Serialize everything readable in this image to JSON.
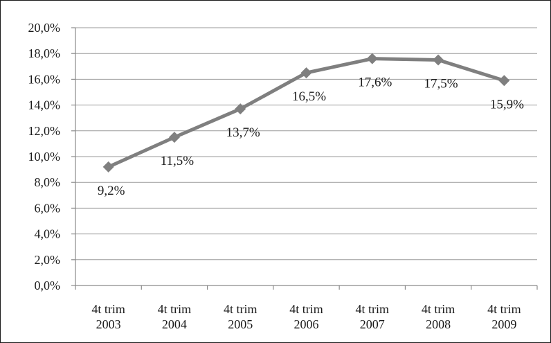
{
  "chart_data": {
    "type": "line",
    "categories": [
      [
        "4t trim",
        "2003"
      ],
      [
        "4t trim",
        "2004"
      ],
      [
        "4t trim",
        "2005"
      ],
      [
        "4t trim",
        "2006"
      ],
      [
        "4t trim",
        "2007"
      ],
      [
        "4t trim",
        "2008"
      ],
      [
        "4t trim",
        "2009"
      ]
    ],
    "series": [
      {
        "values": [
          9.2,
          11.5,
          13.7,
          16.5,
          17.6,
          17.5,
          15.9
        ],
        "data_labels": [
          "9,2%",
          "11,5%",
          "13,7%",
          "16,5%",
          "17,6%",
          "17,5%",
          "15,9%"
        ],
        "color": "#7f7f7f",
        "marker": "diamond"
      }
    ],
    "ylim": [
      0,
      20
    ],
    "ytick_values": [
      0,
      2,
      4,
      6,
      8,
      10,
      12,
      14,
      16,
      18,
      20
    ],
    "ytick_labels": [
      "0,0%",
      "2,0%",
      "4,0%",
      "6,0%",
      "8,0%",
      "10,0%",
      "12,0%",
      "14,0%",
      "16,0%",
      "18,0%",
      "20,0%"
    ],
    "grid": true,
    "legend": false
  }
}
